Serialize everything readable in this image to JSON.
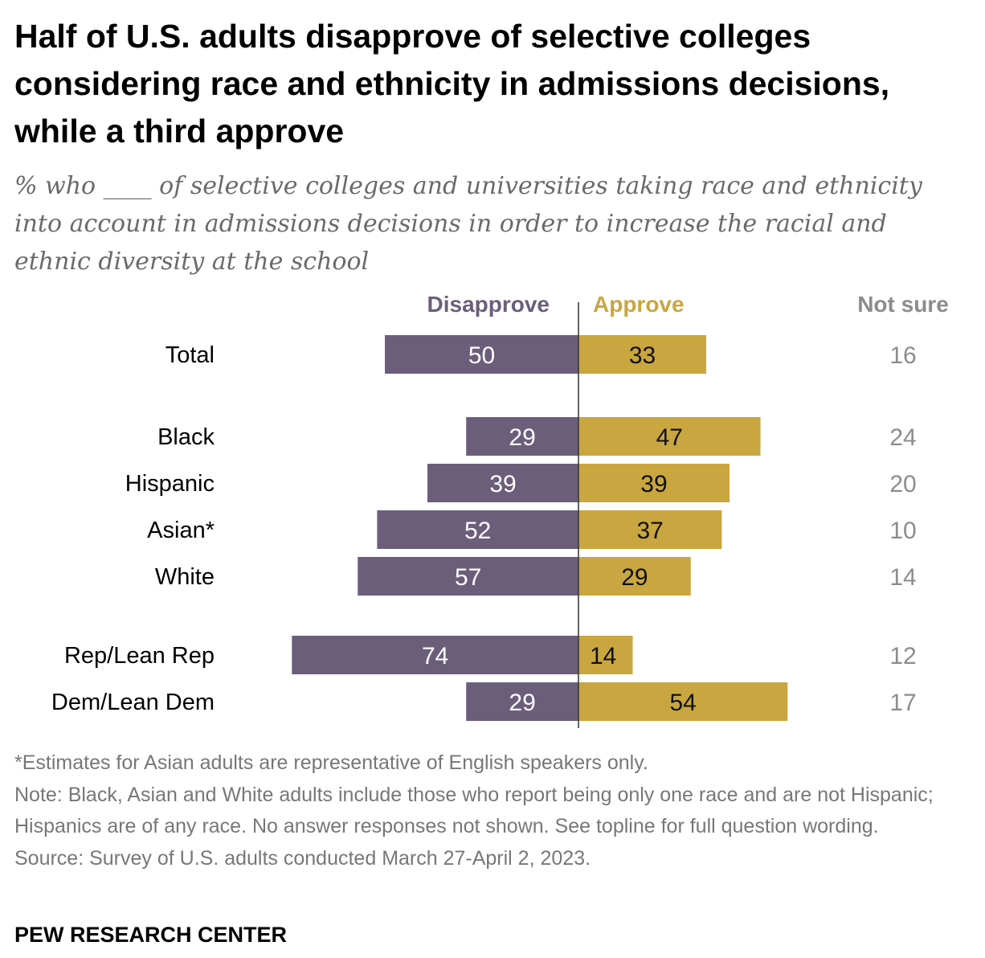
{
  "title": "Half of U.S. adults disapprove of selective colleges considering race and ethnicity in admissions decisions, while a third approve",
  "subtitle": "% who ____ of selective colleges and universities taking race and ethnicity into account in admissions decisions in order to increase the racial and ethnic diversity at the school",
  "chart_data": {
    "type": "bar",
    "orientation": "horizontal-diverging",
    "categories": [
      "Total",
      "Black",
      "Hispanic",
      "Asian*",
      "White",
      "Rep/Lean Rep",
      "Dem/Lean Dem"
    ],
    "groups": [
      [
        "Total"
      ],
      [
        "Black",
        "Hispanic",
        "Asian*",
        "White"
      ],
      [
        "Rep/Lean Rep",
        "Dem/Lean Dem"
      ]
    ],
    "series": [
      {
        "name": "Disapprove",
        "values": [
          50,
          29,
          39,
          52,
          57,
          74,
          29
        ],
        "color": "#6b5e7b"
      },
      {
        "name": "Approve",
        "values": [
          33,
          47,
          39,
          37,
          29,
          14,
          54
        ],
        "color": "#c9a640"
      }
    ],
    "not_sure": {
      "name": "Not sure",
      "values": [
        16,
        24,
        20,
        10,
        14,
        12,
        17
      ],
      "color": "#8c8c8c"
    },
    "legend_placement": "top",
    "grid": false
  },
  "footer": {
    "asterisk_note": "*Estimates for Asian adults are representative of English speakers only.",
    "note": "Note: Black, Asian and White adults include those who report being only one race and are not Hispanic; Hispanics are of any race. No answer responses not shown. See topline for full question wording.",
    "source": "Source: Survey of U.S. adults conducted March 27-April 2, 2023."
  },
  "brand": "PEW RESEARCH CENTER"
}
